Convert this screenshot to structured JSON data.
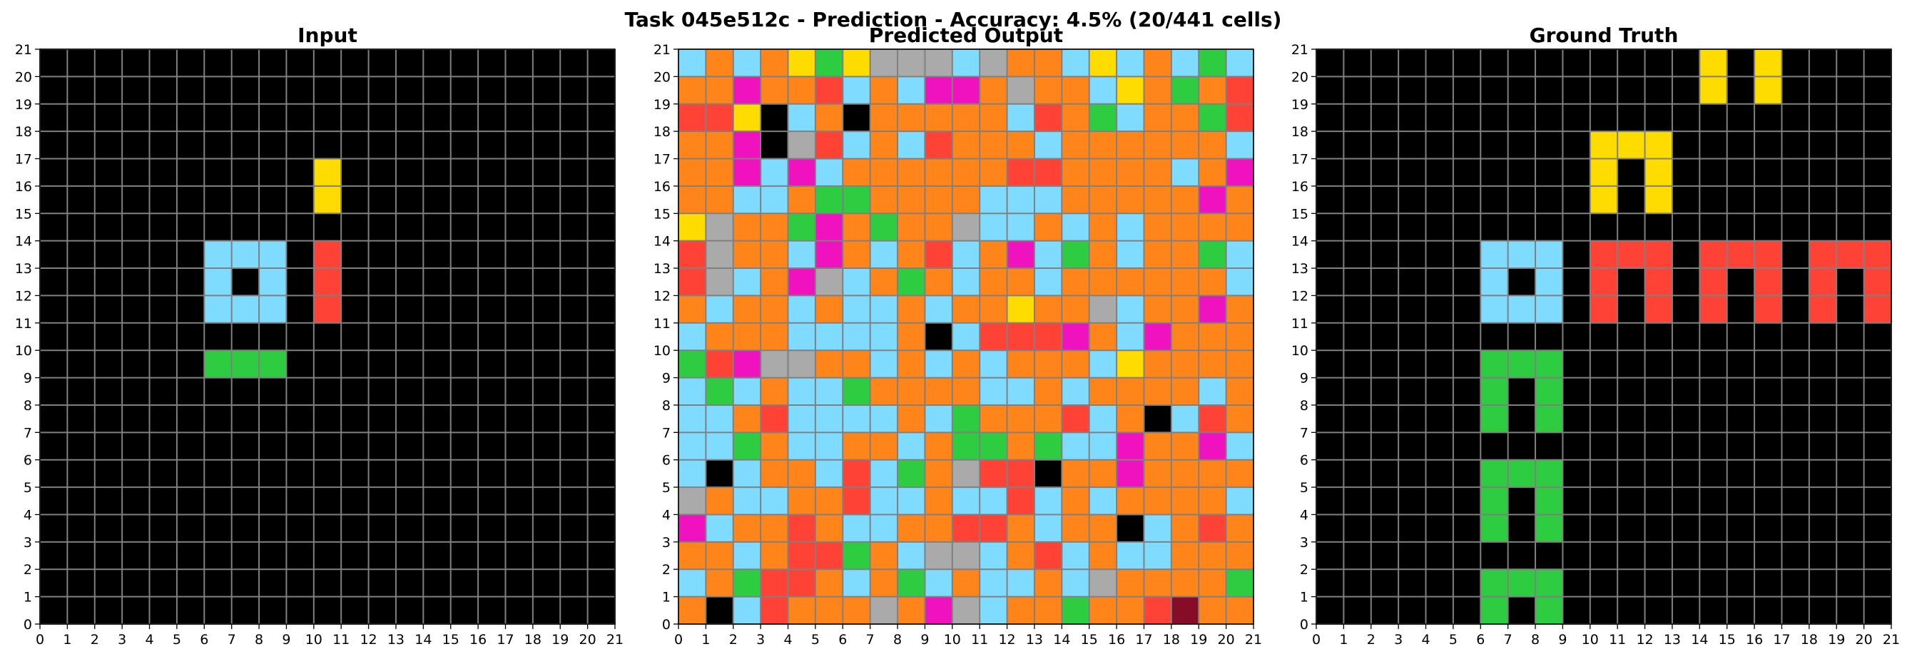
{
  "suptitle": "Task 045e512c - Prediction - Accuracy: 4.5% (20/441 cells)",
  "palette": {
    "0": "#000000",
    "1": "#0074D9",
    "2": "#FF4136",
    "3": "#2ECC40",
    "4": "#FFDC00",
    "5": "#AAAAAA",
    "6": "#F012BE",
    "7": "#FF851B",
    "8": "#7FDBFF",
    "9": "#870C25"
  },
  "gridline_color": "#808080",
  "chart_data": [
    {
      "type": "heatmap",
      "title": "Input",
      "xlim": [
        0,
        21
      ],
      "ylim": [
        0,
        21
      ],
      "xticks": [
        "0",
        "1",
        "2",
        "3",
        "4",
        "5",
        "6",
        "7",
        "8",
        "9",
        "10",
        "11",
        "12",
        "13",
        "14",
        "15",
        "16",
        "17",
        "18",
        "19",
        "20",
        "21"
      ],
      "yticks": [
        "0",
        "1",
        "2",
        "3",
        "4",
        "5",
        "6",
        "7",
        "8",
        "9",
        "10",
        "11",
        "12",
        "13",
        "14",
        "15",
        "16",
        "17",
        "18",
        "19",
        "20",
        "21"
      ],
      "grid": true,
      "rows": [
        "000000000000000000000",
        "000000000000000000000",
        "000000000000000000000",
        "000000000000000000000",
        "000000000040000000000",
        "000000000040000000000",
        "000000000000000000000",
        "000000888020000000000",
        "000000808020000000000",
        "000000888020000000000",
        "000000000000000000000",
        "000000333000000000000",
        "000000000000000000000",
        "000000000000000000000",
        "000000000000000000000",
        "000000000000000000000",
        "000000000000000000000",
        "000000000000000000000",
        "000000000000000000000",
        "000000000000000000000",
        "000000000000000000000"
      ]
    },
    {
      "type": "heatmap",
      "title": "Predicted Output",
      "xlim": [
        0,
        21
      ],
      "ylim": [
        0,
        21
      ],
      "xticks": [
        "0",
        "1",
        "2",
        "3",
        "4",
        "5",
        "6",
        "7",
        "8",
        "9",
        "10",
        "11",
        "12",
        "13",
        "14",
        "15",
        "16",
        "17",
        "18",
        "19",
        "20",
        "21"
      ],
      "yticks": [
        "0",
        "1",
        "2",
        "3",
        "4",
        "5",
        "6",
        "7",
        "8",
        "9",
        "10",
        "11",
        "12",
        "13",
        "14",
        "15",
        "16",
        "17",
        "18",
        "19",
        "20",
        "21"
      ],
      "grid": true,
      "rows": [
        "878743455585778487838",
        "776772878667577847372",
        "224087077777827387732",
        "776052878277787777778",
        "776868777777227777876",
        "778873377778887777767",
        "457736737758878787777",
        "257786787287683787738",
        "258765873787787777778",
        "787787887877477587767",
        "877788887082226786777",
        "326557787878777847777",
        "838788377778878777787",
        "887288887837772870827",
        "883788778733738867768",
        "808778283752207767777",
        "578877288788287877778",
        "687727887722787708727",
        "778722378558728788777",
        "873227873878878577773",
        "708277757658773772977"
      ]
    },
    {
      "type": "heatmap",
      "title": "Ground Truth",
      "xlim": [
        0,
        21
      ],
      "ylim": [
        0,
        21
      ],
      "xticks": [
        "0",
        "1",
        "2",
        "3",
        "4",
        "5",
        "6",
        "7",
        "8",
        "9",
        "10",
        "11",
        "12",
        "13",
        "14",
        "15",
        "16",
        "17",
        "18",
        "19",
        "20",
        "21"
      ],
      "yticks": [
        "0",
        "1",
        "2",
        "3",
        "4",
        "5",
        "6",
        "7",
        "8",
        "9",
        "10",
        "11",
        "12",
        "13",
        "14",
        "15",
        "16",
        "17",
        "18",
        "19",
        "20",
        "21"
      ],
      "grid": true,
      "rows": [
        "000000000000004040000",
        "000000000000004040000",
        "000000000000000000000",
        "000000000044400000000",
        "000000000040400000000",
        "000000000040400000000",
        "000000000000000000000",
        "000000888022202220222",
        "000000808020202020202",
        "000000888020202020202",
        "000000000000000000000",
        "000000333000000000000",
        "000000303000000000000",
        "000000303000000000000",
        "000000000000000000000",
        "000000333000000000000",
        "000000303000000000000",
        "000000303000000000000",
        "000000000000000000000",
        "000000333000000000000",
        "000000303000000000000"
      ]
    }
  ]
}
